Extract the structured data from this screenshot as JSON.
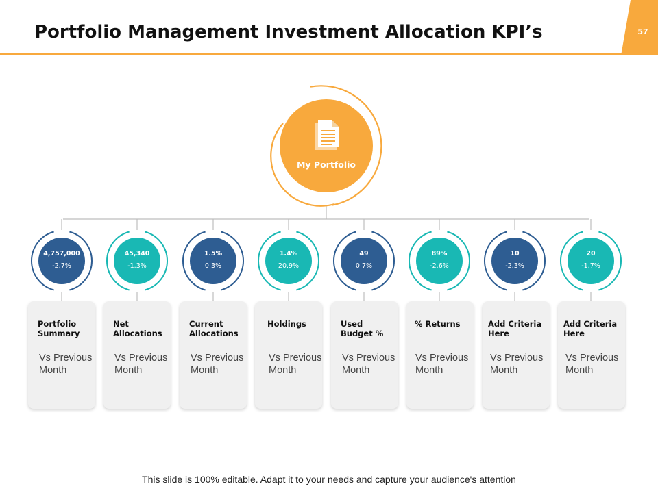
{
  "slide": {
    "title": "Portfolio Management Investment Allocation KPI’s",
    "page_number": "57",
    "footer": "This slide is 100% editable. Adapt it to your needs and capture your audience's attention"
  },
  "colors": {
    "accent_orange": "#f8a93d",
    "kpi_blue": "#2e5d92",
    "kpi_teal": "#19b8b4",
    "card_bg": "#f0f0f0"
  },
  "hub": {
    "label": "My Portfolio",
    "icon": "document-icon"
  },
  "kpis": [
    {
      "value": "4,757,000",
      "change": "-2.7%",
      "label": "Portfolio Summary",
      "comparison": "Vs Previous Month",
      "color": "blue"
    },
    {
      "value": "45,340",
      "change": "-1.3%",
      "label": "Net Allocations",
      "comparison": "Vs Previous Month",
      "color": "teal"
    },
    {
      "value": "1.5%",
      "change": "0.3%",
      "label": "Current Allocations",
      "comparison": "Vs Previous Month",
      "color": "blue"
    },
    {
      "value": "1.4%",
      "change": "20.9%",
      "label": "Holdings",
      "comparison": "Vs Previous Month",
      "color": "teal"
    },
    {
      "value": "49",
      "change": "0.7%",
      "label": "Used Budget %",
      "comparison": "Vs Previous Month",
      "color": "blue"
    },
    {
      "value": "89%",
      "change": "-2.6%",
      "label": "% Returns",
      "comparison": "Vs Previous Month",
      "color": "teal"
    },
    {
      "value": "10",
      "change": "-2.3%",
      "label": "Add Criteria Here",
      "comparison": "Vs Previous Month",
      "color": "blue"
    },
    {
      "value": "20",
      "change": "-1.7%",
      "label": "Add Criteria Here",
      "comparison": "Vs Previous Month",
      "color": "teal"
    }
  ]
}
